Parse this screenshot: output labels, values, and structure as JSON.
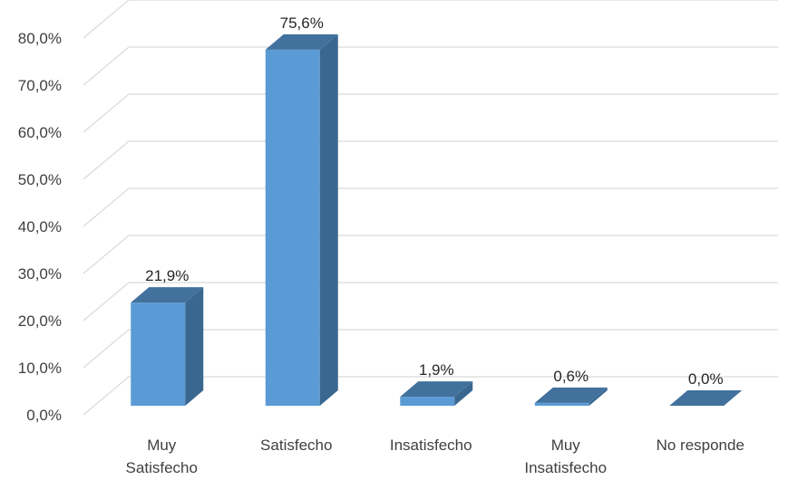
{
  "chart_data": {
    "type": "bar",
    "style": "3d-column",
    "categories": [
      [
        "Muy",
        "Satisfecho"
      ],
      [
        "Satisfecho"
      ],
      [
        "Insatisfecho"
      ],
      [
        "Muy",
        "Insatisfecho"
      ],
      [
        "No responde"
      ]
    ],
    "values": [
      21.9,
      75.6,
      1.9,
      0.6,
      0.0
    ],
    "data_labels": [
      "21,9%",
      "75,6%",
      "1,9%",
      "0,6%",
      "0,0%"
    ],
    "y_ticks": [
      0,
      10,
      20,
      30,
      40,
      50,
      60,
      70,
      80
    ],
    "y_tick_labels": [
      "0,0%",
      "10,0%",
      "20,0%",
      "30,0%",
      "40,0%",
      "50,0%",
      "60,0%",
      "70,0%",
      "80,0%"
    ],
    "ylim": [
      0,
      85
    ],
    "grid": true,
    "legend": "none",
    "colors": {
      "bar_front": "#5b9bd5",
      "bar_top": "#41719c",
      "bar_side": "#3a6790",
      "grid": "#d9d9d9",
      "text": "#404040"
    }
  }
}
